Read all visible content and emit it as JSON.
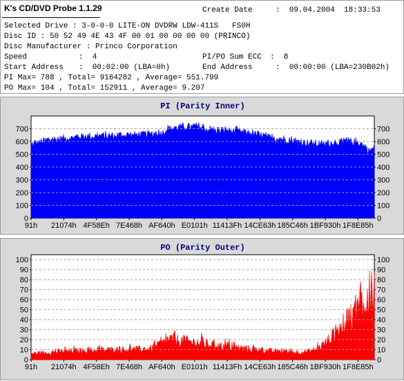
{
  "header": {
    "app_title": "K's CD/DVD Probe 1.1.29",
    "create_date_label": "Create Date",
    "create_date_value": ":  09.04.2004  18:33:53",
    "rows": [
      "Selected Drive : 3-0-0-0 LITE-ON DVDRW LDW-411S   FS0H",
      "Disc ID : 50 52 49 4E 43 4F 00 01 00 00 00 00 (PRINCO)",
      "Disc Manufacturer : Princo Corporation"
    ],
    "speed_label": "Speed",
    "speed_value": ":  4",
    "sum_ecc_label": "PI/PO Sum ECC",
    "sum_ecc_value": ":  8",
    "start_label": "Start Address",
    "start_value": ":  00:02:00 (LBA=0h)",
    "end_label": "End Address",
    "end_value": ":  00:00:00 (LBA=230B02h)",
    "pi_stats": "PI Max= 788 , Total= 9164282 , Average= 551.799",
    "po_stats": "PO Max= 104 , Total= 152911 , Average= 9.207"
  },
  "colors": {
    "panel_bg": "#d9d9d9",
    "plot_bg": "#ffffff",
    "grid": "#a0a0a0",
    "pi_fill": "#0000ff",
    "po_fill": "#ff0000",
    "title": "#000080"
  },
  "chart_data": [
    {
      "type": "area",
      "title": "PI (Parity Inner)",
      "x_tick_labels": [
        "91h",
        "21074h",
        "4F58Eh",
        "7E468h",
        "AF640h",
        "E0101h",
        "11413Fh",
        "14CE63h",
        "185C46h",
        "1BF930h",
        "1F8E85h"
      ],
      "ylim": [
        0,
        800
      ],
      "y_ticks": [
        0,
        100,
        200,
        300,
        400,
        500,
        600,
        700
      ],
      "grid": true,
      "envelope": [
        [
          0,
          590
        ],
        [
          0.05,
          620
        ],
        [
          0.1,
          640
        ],
        [
          0.15,
          650
        ],
        [
          0.2,
          655
        ],
        [
          0.25,
          660
        ],
        [
          0.3,
          665
        ],
        [
          0.35,
          668
        ],
        [
          0.38,
          680
        ],
        [
          0.4,
          710
        ],
        [
          0.43,
          725
        ],
        [
          0.46,
          722
        ],
        [
          0.48,
          730
        ],
        [
          0.5,
          718
        ],
        [
          0.52,
          705
        ],
        [
          0.55,
          700
        ],
        [
          0.6,
          695
        ],
        [
          0.65,
          670
        ],
        [
          0.7,
          640
        ],
        [
          0.75,
          625
        ],
        [
          0.8,
          600
        ],
        [
          0.85,
          590
        ],
        [
          0.9,
          610
        ],
        [
          0.93,
          615
        ],
        [
          0.96,
          600
        ],
        [
          0.985,
          540
        ],
        [
          1.0,
          560
        ]
      ],
      "max_value": 788
    },
    {
      "type": "area",
      "title": "PO (Parity Outer)",
      "x_tick_labels": [
        "91h",
        "21074h",
        "4F58Eh",
        "7E468h",
        "AF640h",
        "E0101h",
        "11413Fh",
        "14CE63h",
        "185C46h",
        "1BF930h",
        "1F8E85h"
      ],
      "ylim": [
        0,
        105
      ],
      "y_ticks": [
        0,
        10,
        20,
        30,
        40,
        50,
        60,
        70,
        80,
        90,
        100
      ],
      "grid": true,
      "envelope": [
        [
          0,
          7
        ],
        [
          0.1,
          10
        ],
        [
          0.2,
          11
        ],
        [
          0.3,
          12
        ],
        [
          0.35,
          13
        ],
        [
          0.38,
          18
        ],
        [
          0.4,
          24
        ],
        [
          0.44,
          22
        ],
        [
          0.48,
          20
        ],
        [
          0.52,
          18
        ],
        [
          0.56,
          16
        ],
        [
          0.6,
          14
        ],
        [
          0.65,
          12
        ],
        [
          0.7,
          10
        ],
        [
          0.75,
          9
        ],
        [
          0.8,
          9
        ],
        [
          0.83,
          12
        ],
        [
          0.86,
          20
        ],
        [
          0.89,
          32
        ],
        [
          0.92,
          48
        ],
        [
          0.94,
          62
        ],
        [
          0.96,
          78
        ],
        [
          0.975,
          90
        ],
        [
          0.99,
          96
        ],
        [
          1.0,
          88
        ]
      ],
      "max_value": 104
    }
  ]
}
